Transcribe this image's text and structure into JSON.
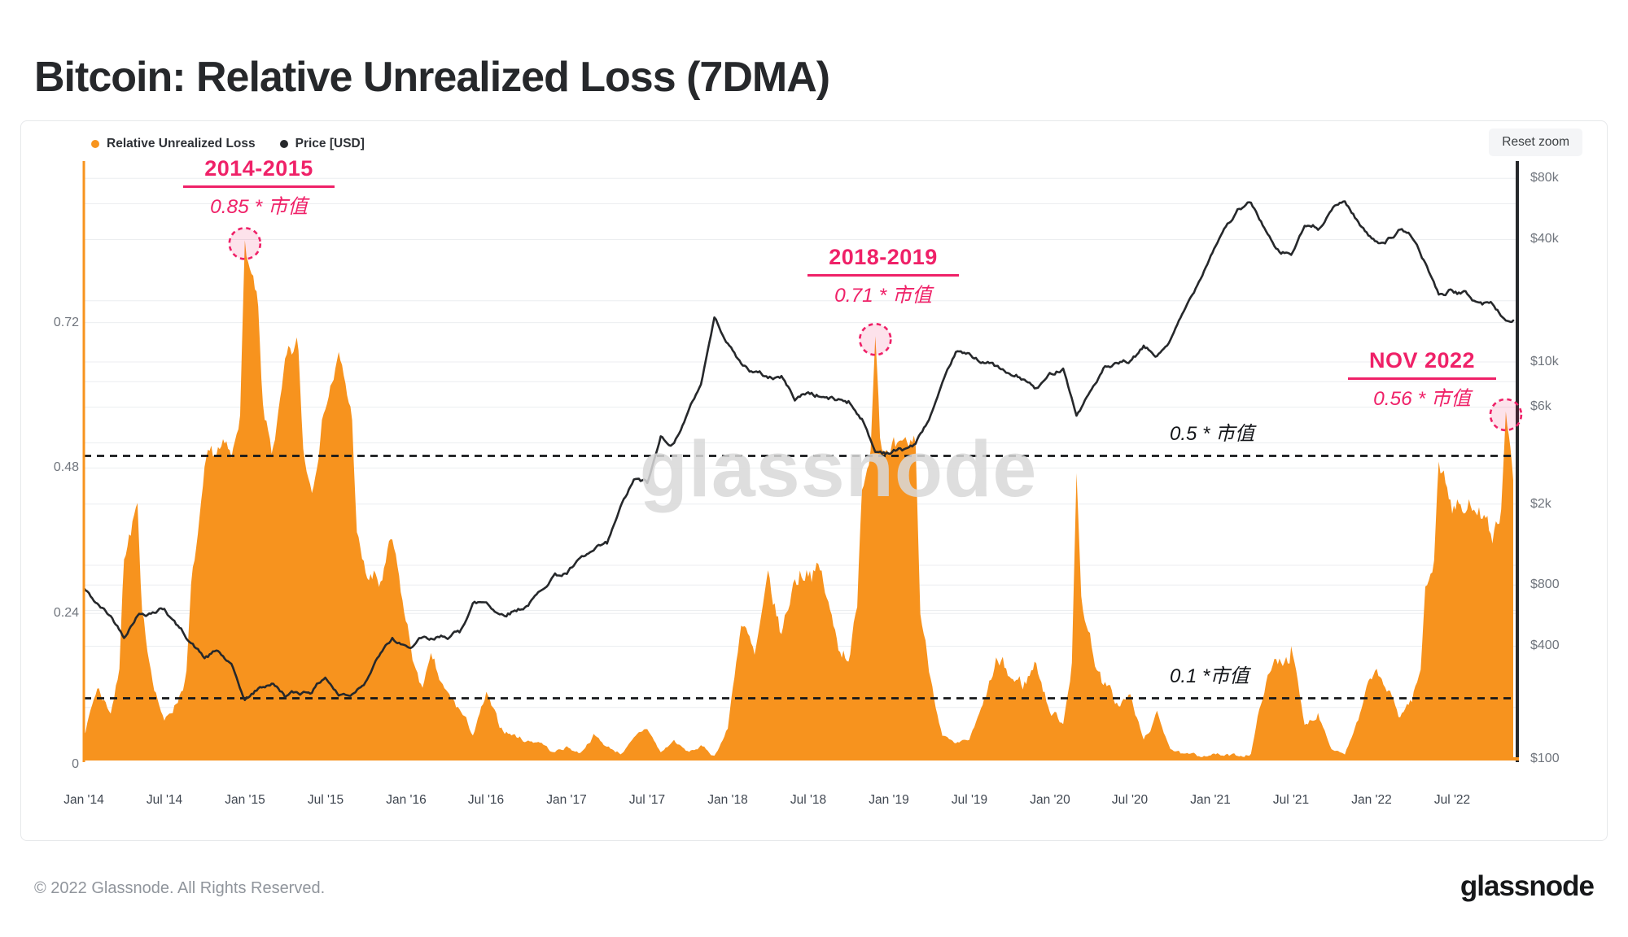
{
  "page": {
    "title": "Bitcoin: Relative Unrealized Loss (7DMA)",
    "watermark": "glassnode",
    "footer_copyright": "© 2022 Glassnode. All Rights Reserved.",
    "brand_logo": "glassnode"
  },
  "chart": {
    "reset_button_label": "Reset zoom",
    "legend": [
      {
        "label": "Relative Unrealized Loss",
        "color": "#F7941E"
      },
      {
        "label": "Price [USD]",
        "color": "#26282B"
      }
    ],
    "reference_lines": [
      {
        "label": "0.5 * 市值",
        "value": 0.5
      },
      {
        "label": "0.1 *市值",
        "value": 0.1
      }
    ],
    "annotations": [
      {
        "title": "2014-2015",
        "subtitle": "0.85 * 市值",
        "peak_value": 0.85,
        "peak_month": "2015-01",
        "month_index": 12
      },
      {
        "title": "2018-2019",
        "subtitle": "0.71 * 市值",
        "peak_value": 0.71,
        "peak_month": "2018-12",
        "month_index": 59
      },
      {
        "title": "NOV 2022",
        "subtitle": "0.56 * 市值",
        "peak_value": 0.56,
        "peak_month": "2022-11",
        "month_index": 106
      }
    ],
    "colors": {
      "area": "#F7931E",
      "price_line": "#26282B",
      "annotation_pink": "#EF2168",
      "circle_fill": "rgba(239,33,104,0.13)",
      "gridline": "#eceef0",
      "dashed_line": "#15171a",
      "watermark": "#d9d9d9"
    }
  },
  "chart_data": {
    "type": "area+line",
    "title": "Bitcoin: Relative Unrealized Loss (7DMA)",
    "x_start_month": "2014-01",
    "x_end_month": "2022-11",
    "x_tick_labels": [
      "Jan '14",
      "Jul '14",
      "Jan '15",
      "Jul '15",
      "Jan '16",
      "Jul '16",
      "Jan '17",
      "Jul '17",
      "Jan '18",
      "Jul '18",
      "Jan '19",
      "Jul '19",
      "Jan '20",
      "Jul '20",
      "Jan '21",
      "Jul '21",
      "Jan '22",
      "Jul '22"
    ],
    "y_left_axis": {
      "label": "Relative Unrealized Loss",
      "range": [
        0,
        0.98
      ],
      "ticks": [
        {
          "label": "0.72",
          "value": 0.72
        },
        {
          "label": "0.48",
          "value": 0.48
        },
        {
          "label": "0.24",
          "value": 0.24
        },
        {
          "label": "0",
          "value": 0
        }
      ],
      "gridline_values": [
        0.24,
        0.48,
        0.72
      ]
    },
    "y_right_axis": {
      "label": "Price [USD]",
      "scale": "log",
      "range": [
        100,
        90000
      ],
      "ticks": [
        {
          "label": "$80k",
          "value": 80000
        },
        {
          "label": "$40k",
          "value": 40000
        },
        {
          "label": "$10k",
          "value": 10000
        },
        {
          "label": "$6k",
          "value": 6000
        },
        {
          "label": "$2k",
          "value": 2000
        },
        {
          "label": "$800",
          "value": 800
        },
        {
          "label": "$400",
          "value": 400
        },
        {
          "label": "$100",
          "value": 100
        }
      ],
      "gridline_values": [
        200,
        400,
        600,
        800,
        1000,
        2000,
        4000,
        6000,
        8000,
        10000,
        20000,
        40000,
        60000,
        80000
      ]
    },
    "series": [
      {
        "name": "Relative Unrealized Loss",
        "axis": "left",
        "color": "#F7931E",
        "style": "area",
        "monthly_values": [
          0.04,
          0.12,
          0.08,
          0.35,
          0.42,
          0.15,
          0.06,
          0.1,
          0.28,
          0.45,
          0.5,
          0.48,
          0.85,
          0.74,
          0.5,
          0.63,
          0.67,
          0.45,
          0.6,
          0.66,
          0.56,
          0.3,
          0.28,
          0.35,
          0.22,
          0.12,
          0.15,
          0.1,
          0.08,
          0.04,
          0.1,
          0.05,
          0.04,
          0.03,
          0.03,
          0.01,
          0.02,
          0.01,
          0.04,
          0.02,
          0.01,
          0.03,
          0.05,
          0.01,
          0.03,
          0.01,
          0.02,
          0.005,
          0.05,
          0.23,
          0.16,
          0.28,
          0.2,
          0.3,
          0.33,
          0.3,
          0.2,
          0.18,
          0.45,
          0.71,
          0.5,
          0.48,
          0.52,
          0.15,
          0.04,
          0.02,
          0.03,
          0.08,
          0.15,
          0.13,
          0.12,
          0.16,
          0.08,
          0.06,
          0.47,
          0.2,
          0.12,
          0.09,
          0.1,
          0.03,
          0.07,
          0.02,
          0.005,
          0.003,
          0.01,
          0.005,
          0.004,
          0.01,
          0.12,
          0.16,
          0.19,
          0.05,
          0.08,
          0.02,
          0.01,
          0.06,
          0.13,
          0.12,
          0.07,
          0.1,
          0.28,
          0.5,
          0.42,
          0.4,
          0.44,
          0.36,
          0.56
        ]
      },
      {
        "name": "Price [USD]",
        "axis": "right",
        "color": "#26282B",
        "style": "line",
        "monthly_values": [
          770,
          640,
          560,
          450,
          580,
          600,
          620,
          500,
          420,
          350,
          375,
          320,
          215,
          245,
          265,
          230,
          235,
          245,
          285,
          230,
          235,
          275,
          360,
          430,
          385,
          420,
          415,
          445,
          465,
          650,
          660,
          580,
          605,
          640,
          730,
          900,
          920,
          1050,
          1150,
          1250,
          1900,
          2600,
          2500,
          4200,
          4000,
          5600,
          7800,
          16500,
          12500,
          9800,
          8900,
          8400,
          8500,
          6600,
          7100,
          6800,
          6500,
          6450,
          5300,
          3600,
          3650,
          3700,
          3950,
          5200,
          7600,
          11000,
          10500,
          10200,
          9500,
          8500,
          8200,
          7300,
          8500,
          9500,
          5500,
          7100,
          9200,
          9400,
          9900,
          11600,
          10600,
          12800,
          17500,
          24000,
          34000,
          46000,
          55000,
          60000,
          46000,
          34000,
          33500,
          46000,
          45000,
          57000,
          62000,
          49000,
          40000,
          40000,
          44000,
          41000,
          30500,
          21500,
          22500,
          21500,
          19500,
          19200,
          16000
        ]
      }
    ]
  }
}
